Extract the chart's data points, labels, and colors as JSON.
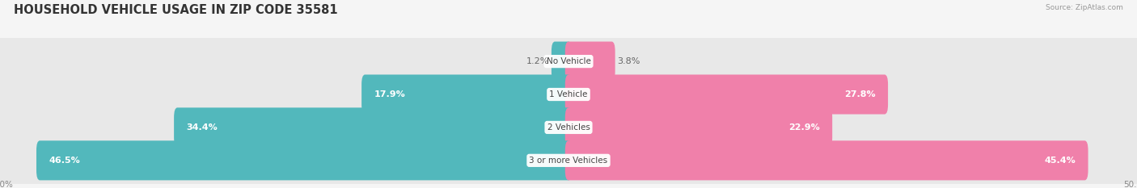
{
  "title": "HOUSEHOLD VEHICLE USAGE IN ZIP CODE 35581",
  "source": "Source: ZipAtlas.com",
  "categories": [
    "No Vehicle",
    "1 Vehicle",
    "2 Vehicles",
    "3 or more Vehicles"
  ],
  "owner_values": [
    1.2,
    17.9,
    34.4,
    46.5
  ],
  "renter_values": [
    3.8,
    27.8,
    22.9,
    45.4
  ],
  "owner_color": "#52b8bc",
  "renter_color": "#f080aa",
  "bar_bg_color": "#e8e8e8",
  "background_color": "#f5f5f5",
  "xlim": 50.0,
  "bar_height": 0.62,
  "label_fontsize": 8.0,
  "title_fontsize": 10.5,
  "category_fontsize": 7.5,
  "axis_label_fontsize": 7.5,
  "legend_fontsize": 8
}
